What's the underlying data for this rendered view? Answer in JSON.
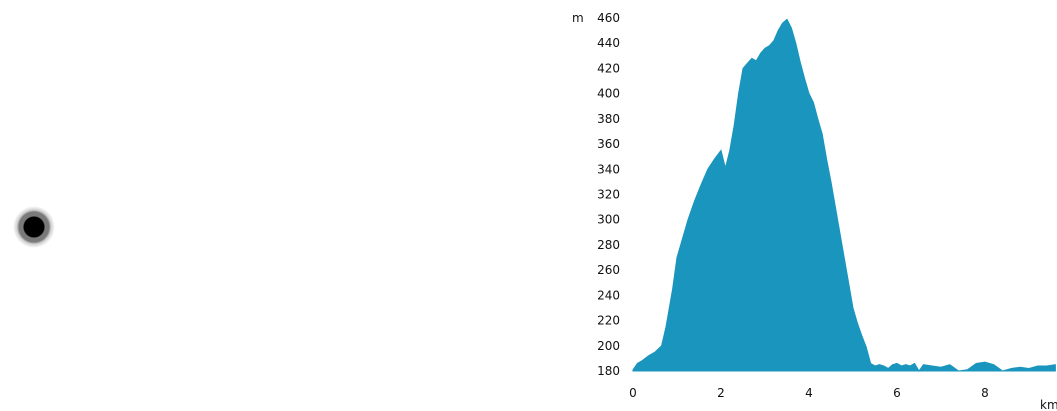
{
  "marker": {
    "icon": "location-dot-icon"
  },
  "chart_data": {
    "type": "area",
    "title": "",
    "xlabel": "km",
    "ylabel": "m",
    "xlim": [
      0,
      9.6
    ],
    "ylim": [
      180,
      460
    ],
    "xticks": [
      0,
      2,
      4,
      6,
      8
    ],
    "yticks": [
      180,
      200,
      220,
      240,
      260,
      280,
      300,
      320,
      340,
      360,
      380,
      400,
      420,
      440,
      460
    ],
    "grid": false,
    "legend": "none",
    "fill_color": "#1a95bd",
    "series": [
      {
        "x": [
          0.0,
          0.1,
          0.2,
          0.35,
          0.5,
          0.65,
          0.75,
          0.9,
          1.0,
          1.1,
          1.25,
          1.4,
          1.55,
          1.7,
          1.85,
          2.0,
          2.1,
          2.2,
          2.3,
          2.4,
          2.5,
          2.6,
          2.7,
          2.8,
          2.9,
          3.0,
          3.1,
          3.2,
          3.3,
          3.4,
          3.5,
          3.6,
          3.7,
          3.8,
          3.9,
          4.0,
          4.1,
          4.2,
          4.3,
          4.4,
          4.5,
          4.6,
          4.7,
          4.8,
          4.9,
          5.0,
          5.1,
          5.2,
          5.3,
          5.4,
          5.5,
          5.6,
          5.7,
          5.8,
          5.9,
          6.0,
          6.1,
          6.2,
          6.3,
          6.4,
          6.5,
          6.6,
          6.8,
          7.0,
          7.2,
          7.4,
          7.6,
          7.8,
          8.0,
          8.2,
          8.4,
          8.6,
          8.8,
          9.0,
          9.2,
          9.4,
          9.6
        ],
        "values": [
          181,
          186,
          188,
          192,
          195,
          200,
          215,
          245,
          270,
          282,
          300,
          315,
          328,
          340,
          348,
          355,
          341,
          355,
          375,
          400,
          420,
          424,
          428,
          426,
          432,
          436,
          438,
          442,
          450,
          456,
          459,
          452,
          440,
          425,
          412,
          400,
          393,
          380,
          368,
          348,
          330,
          310,
          290,
          270,
          250,
          230,
          218,
          208,
          199,
          186,
          184,
          185,
          184,
          182,
          185,
          186,
          184,
          185,
          184,
          186,
          180,
          185,
          184,
          183,
          185,
          180,
          181,
          186,
          187,
          185,
          180,
          182,
          183,
          182,
          184,
          184,
          185
        ]
      }
    ]
  }
}
